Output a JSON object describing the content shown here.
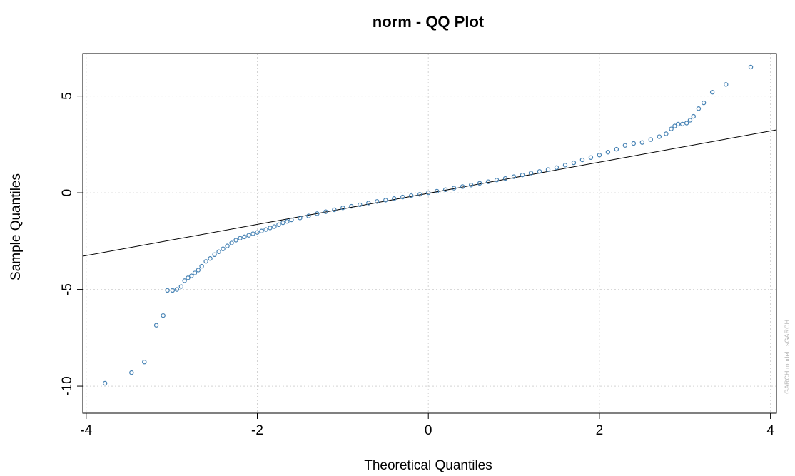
{
  "chart_data": {
    "type": "scatter",
    "title": "norm - QQ Plot",
    "x_label": "Theoretical Quantiles",
    "y_label": "Sample Quantiles",
    "watermark": "GARCH model : sGARCH",
    "xlim": [
      -4.04,
      4.07
    ],
    "ylim": [
      -11.4,
      7.2
    ],
    "xticks": [
      -4,
      -2,
      0,
      2,
      4
    ],
    "yticks": [
      -10,
      -5,
      0,
      5
    ],
    "grid": true,
    "color": "#4682b4",
    "x": [
      -3.78,
      -3.47,
      -3.32,
      -3.18,
      -3.1,
      -3.05,
      -2.99,
      -2.94,
      -2.89,
      -2.85,
      -2.81,
      -2.77,
      -2.73,
      -2.69,
      -2.65,
      -2.6,
      -2.55,
      -2.5,
      -2.45,
      -2.4,
      -2.35,
      -2.3,
      -2.25,
      -2.2,
      -2.15,
      -2.1,
      -2.05,
      -2.0,
      -1.95,
      -1.9,
      -1.85,
      -1.8,
      -1.75,
      -1.7,
      -1.65,
      -1.6,
      -1.5,
      -1.4,
      -1.3,
      -1.2,
      -1.1,
      -1.0,
      -0.9,
      -0.8,
      -0.7,
      -0.6,
      -0.5,
      -0.4,
      -0.3,
      -0.2,
      -0.1,
      0,
      0.1,
      0.2,
      0.3,
      0.4,
      0.5,
      0.6,
      0.7,
      0.8,
      0.9,
      1.0,
      1.1,
      1.2,
      1.3,
      1.4,
      1.5,
      1.6,
      1.7,
      1.8,
      1.9,
      2.0,
      2.1,
      2.2,
      2.3,
      2.4,
      2.5,
      2.6,
      2.7,
      2.78,
      2.84,
      2.88,
      2.92,
      2.97,
      3.02,
      3.06,
      3.1,
      3.16,
      3.22,
      3.32,
      3.48,
      3.77
    ],
    "y": [
      -9.85,
      -9.3,
      -8.75,
      -6.85,
      -6.35,
      -5.05,
      -5.05,
      -5.0,
      -4.85,
      -4.55,
      -4.4,
      -4.3,
      -4.15,
      -4.0,
      -3.8,
      -3.55,
      -3.4,
      -3.2,
      -3.05,
      -2.9,
      -2.75,
      -2.6,
      -2.45,
      -2.35,
      -2.28,
      -2.2,
      -2.12,
      -2.05,
      -1.98,
      -1.9,
      -1.82,
      -1.75,
      -1.65,
      -1.55,
      -1.48,
      -1.4,
      -1.3,
      -1.2,
      -1.08,
      -0.98,
      -0.88,
      -0.78,
      -0.7,
      -0.62,
      -0.53,
      -0.45,
      -0.38,
      -0.3,
      -0.22,
      -0.15,
      -0.08,
      0,
      0.08,
      0.16,
      0.24,
      0.32,
      0.4,
      0.49,
      0.57,
      0.66,
      0.74,
      0.83,
      0.92,
      1.02,
      1.1,
      1.2,
      1.3,
      1.43,
      1.55,
      1.7,
      1.82,
      1.95,
      2.1,
      2.25,
      2.45,
      2.55,
      2.6,
      2.75,
      2.9,
      3.05,
      3.3,
      3.45,
      3.55,
      3.55,
      3.6,
      3.75,
      3.95,
      4.35,
      4.65,
      5.2,
      5.6,
      6.5
    ],
    "reference_line": {
      "x": [
        -4.04,
        4.07
      ],
      "y": [
        -3.28,
        3.25
      ]
    }
  }
}
